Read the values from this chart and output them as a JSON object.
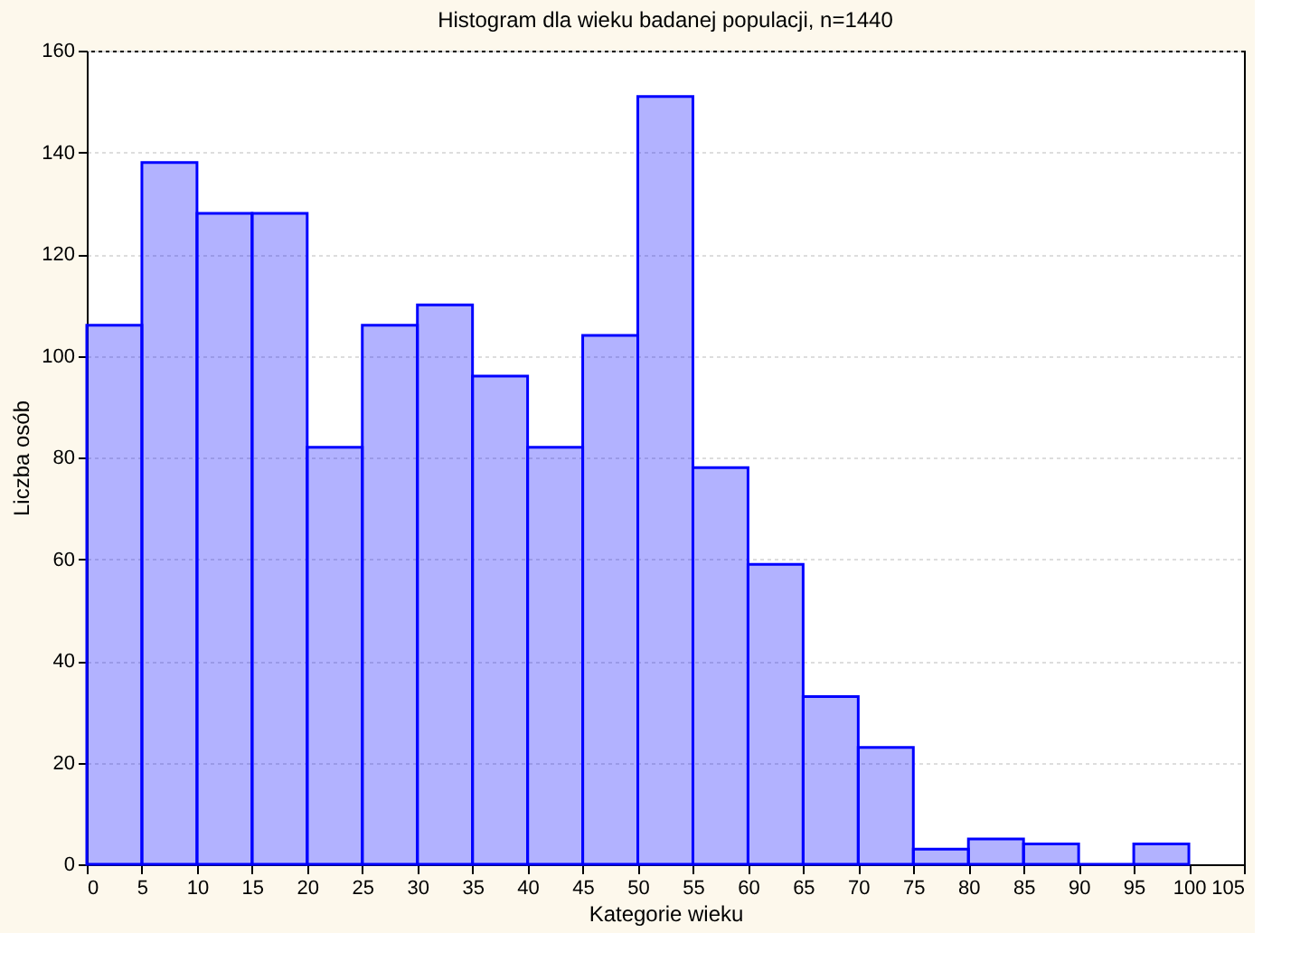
{
  "chart_data": {
    "type": "histogram",
    "title": "Histogram dla wieku badanej populacji, n=1440",
    "xlabel": "Kategorie wieku",
    "ylabel": "Liczba osób",
    "bins": [
      0,
      5,
      10,
      15,
      20,
      25,
      30,
      35,
      40,
      45,
      50,
      55,
      60,
      65,
      70,
      75,
      80,
      85,
      90,
      95,
      100
    ],
    "values": [
      106,
      138,
      128,
      128,
      82,
      106,
      110,
      96,
      82,
      104,
      151,
      78,
      59,
      33,
      23,
      3,
      5,
      4,
      0,
      4
    ],
    "color": "#0000ff",
    "xlim": [
      0,
      105
    ],
    "xticks": [
      0,
      5,
      10,
      15,
      20,
      25,
      30,
      35,
      40,
      45,
      50,
      55,
      60,
      65,
      70,
      75,
      80,
      85,
      90,
      95,
      100,
      105
    ],
    "ylim": [
      0,
      160
    ],
    "yticks": [
      0,
      20,
      40,
      60,
      80,
      100,
      120,
      140,
      160
    ],
    "grid": "y"
  }
}
